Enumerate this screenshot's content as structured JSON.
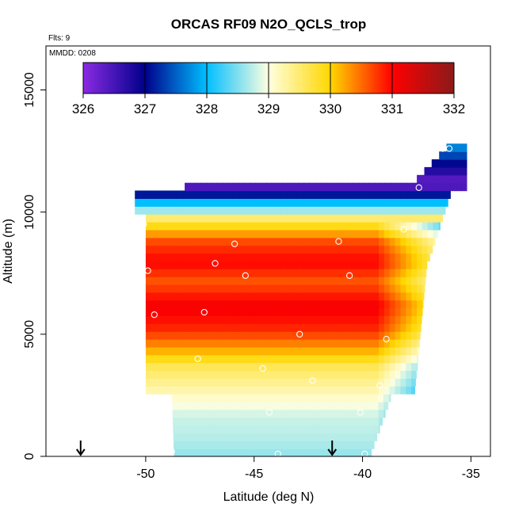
{
  "chart_data": {
    "type": "heatmap",
    "title": "ORCAS RF09 N2O_QCLS_trop",
    "annotations": {
      "flights": "Flts: 9",
      "date": "MMDD: 0208"
    },
    "xlabel": "Latitude (deg N)",
    "ylabel": "Altitude (m)",
    "xlim": [
      -54.6,
      -34.1
    ],
    "ylim": [
      0,
      16800
    ],
    "xticks": [
      -50,
      -45,
      -40,
      -35
    ],
    "yticks": [
      0,
      5000,
      10000,
      15000
    ],
    "colorbar": {
      "range": [
        326,
        332
      ],
      "ticks": [
        326,
        327,
        328,
        329,
        330,
        331,
        332
      ],
      "colors": [
        "#8a2be2",
        "#00008b",
        "#00bfff",
        "#ffffe0",
        "#ffd700",
        "#ff0000",
        "#8b1a1a"
      ]
    },
    "profiles": [
      {
        "lat": -50.0,
        "ymax": 10800,
        "ymin": 2500,
        "lowLat": -48.8
      },
      {
        "lat": -37.6,
        "ymax": 11300,
        "ymin": 2500,
        "lowLat": -39.6
      },
      {
        "lat": -35.2,
        "ymax": 12600,
        "ymin": 8000
      }
    ],
    "layers": [
      {
        "alt": 12600,
        "value": 327.8
      },
      {
        "alt": 11000,
        "value": 326.2
      },
      {
        "alt": 10600,
        "value": 327.0
      },
      {
        "alt": 10300,
        "value": 327.9
      },
      {
        "alt": 10000,
        "value": 328.4
      },
      {
        "alt": 9600,
        "value": 329.5
      },
      {
        "alt": 9200,
        "value": 330.0
      },
      {
        "alt": 8600,
        "value": 330.7
      },
      {
        "alt": 7800,
        "value": 331.0
      },
      {
        "alt": 7000,
        "value": 330.6
      },
      {
        "alt": 6000,
        "value": 331.1
      },
      {
        "alt": 5000,
        "value": 330.8
      },
      {
        "alt": 4200,
        "value": 330.2
      },
      {
        "alt": 3500,
        "value": 329.6
      },
      {
        "alt": 2500,
        "value": 329.2
      },
      {
        "alt": 1500,
        "value": 328.8
      },
      {
        "alt": 500,
        "value": 328.7
      },
      {
        "alt": 0,
        "value": 328.6
      }
    ],
    "points": [
      {
        "lat": -49.9,
        "alt": 7600
      },
      {
        "lat": -50.1,
        "alt": 9500
      },
      {
        "lat": -45.9,
        "alt": 8700
      },
      {
        "lat": -46.8,
        "alt": 7900
      },
      {
        "lat": -45.4,
        "alt": 7400
      },
      {
        "lat": -41.1,
        "alt": 8800
      },
      {
        "lat": -40.6,
        "alt": 7400
      },
      {
        "lat": -47.3,
        "alt": 5900
      },
      {
        "lat": -49.6,
        "alt": 5800
      },
      {
        "lat": -42.9,
        "alt": 5000
      },
      {
        "lat": -47.6,
        "alt": 4000
      },
      {
        "lat": -44.6,
        "alt": 3600
      },
      {
        "lat": -42.3,
        "alt": 3100
      },
      {
        "lat": -44.3,
        "alt": 1800
      },
      {
        "lat": -40.1,
        "alt": 1800
      },
      {
        "lat": -39.2,
        "alt": 2900
      },
      {
        "lat": -38.9,
        "alt": 4800
      },
      {
        "lat": -37.4,
        "alt": 11000
      },
      {
        "lat": -38.1,
        "alt": 9300
      },
      {
        "lat": -36.0,
        "alt": 12600
      },
      {
        "lat": -36.3,
        "alt": 12600
      },
      {
        "lat": -48.8,
        "alt": 200
      },
      {
        "lat": -43.9,
        "alt": 100
      },
      {
        "lat": -39.9,
        "alt": 100
      }
    ],
    "arrows": [
      -53.0,
      -41.4
    ]
  }
}
